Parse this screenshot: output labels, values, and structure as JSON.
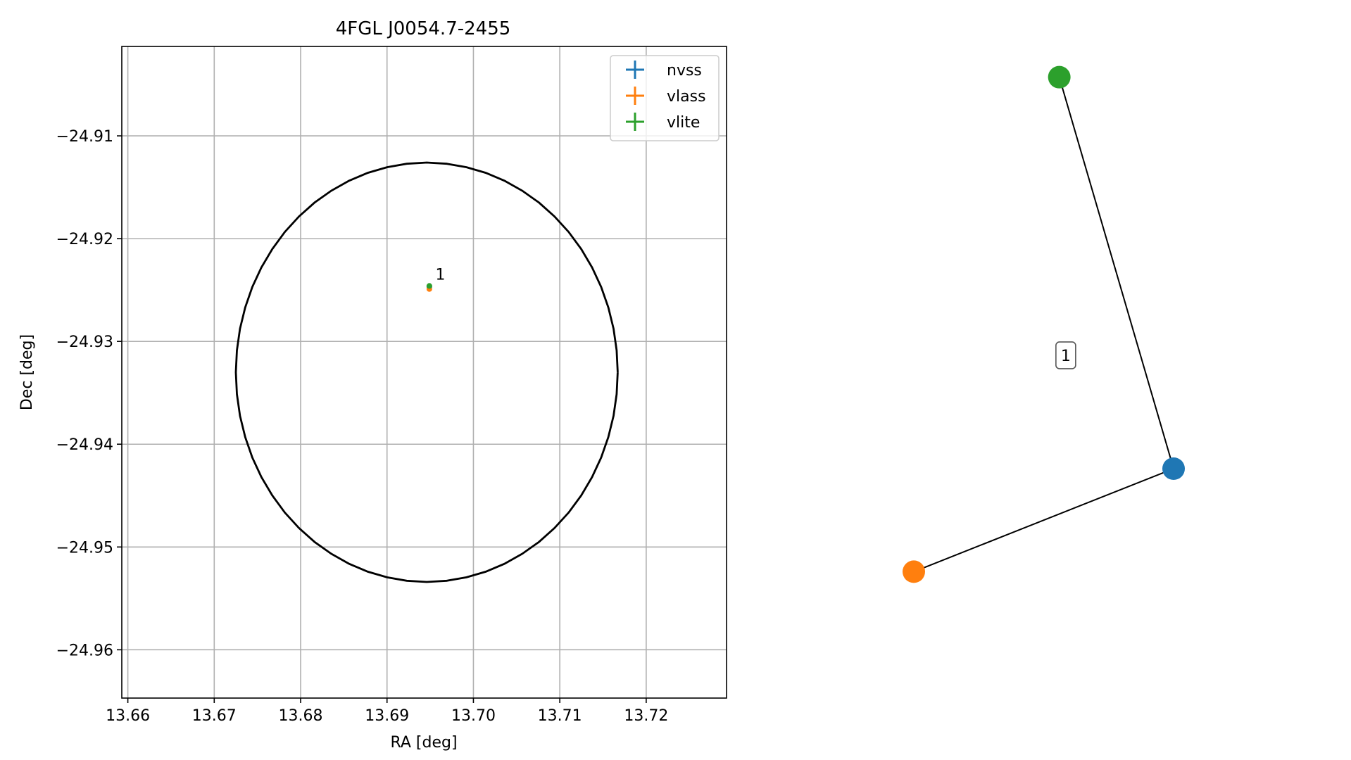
{
  "chart_data": [
    {
      "type": "scatter",
      "title": "4FGL J0054.7-2455",
      "xlabel": "RA [deg]",
      "ylabel": "Dec [deg]",
      "xlim": [
        13.6593,
        13.7293
      ],
      "ylim": [
        -24.9647,
        -24.9013
      ],
      "xticks": [
        13.66,
        13.67,
        13.68,
        13.69,
        13.7,
        13.71,
        13.72
      ],
      "xtick_labels": [
        "13.66",
        "13.67",
        "13.68",
        "13.69",
        "13.70",
        "13.71",
        "13.72"
      ],
      "yticks": [
        -24.91,
        -24.92,
        -24.93,
        -24.94,
        -24.95,
        -24.96
      ],
      "ytick_labels": [
        "−24.91",
        "−24.92",
        "−24.93",
        "−24.94",
        "−24.95",
        "−24.96"
      ],
      "grid": true,
      "legend_position": "top-right",
      "series": [
        {
          "name": "nvss",
          "color": "#1f77b4",
          "x": [
            13.6949
          ],
          "y": [
            -24.9247
          ]
        },
        {
          "name": "vlass",
          "color": "#ff7f0e",
          "x": [
            13.6949
          ],
          "y": [
            -24.9249
          ]
        },
        {
          "name": "vlite",
          "color": "#2ca02c",
          "x": [
            13.6949
          ],
          "y": [
            -24.9246
          ]
        }
      ],
      "ellipse": {
        "center_ra": 13.6946,
        "center_dec": -24.933,
        "semi_ra": 0.0221,
        "semi_dec": 0.0204,
        "color": "#000000"
      },
      "annotations": [
        {
          "text": "1",
          "x": 13.6956,
          "y": -24.924
        }
      ]
    },
    {
      "type": "network",
      "nodes": [
        {
          "name": "nvss",
          "color": "#1f77b4",
          "x": 1.0,
          "y": 0.0
        },
        {
          "name": "vlass",
          "color": "#ff7f0e",
          "x": 0.0,
          "y": -0.4
        },
        {
          "name": "vlite",
          "color": "#2ca02c",
          "x": 0.56,
          "y": 1.52
        }
      ],
      "edges": [
        [
          "nvss",
          "vlass"
        ],
        [
          "nvss",
          "vlite"
        ]
      ],
      "edge_color": "#000000",
      "box_label": {
        "text": "1",
        "x": 0.585,
        "y": 0.44
      }
    }
  ]
}
